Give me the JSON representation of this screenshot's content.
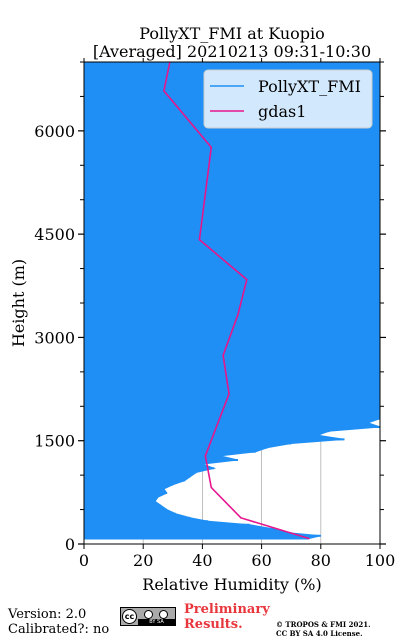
{
  "chart_data": {
    "type": "line",
    "title": "PollyXT_FMI at Kuopio",
    "subtitle": "[Averaged] 20210213 09:31-10:30",
    "xlabel": "Relative Humidity (%)",
    "ylabel": "Height (m)",
    "xlim": [
      0,
      100
    ],
    "ylim": [
      0,
      7000
    ],
    "xticks": [
      0,
      20,
      40,
      60,
      80,
      100
    ],
    "yticks": [
      0,
      1500,
      3000,
      4500,
      6000
    ],
    "grid": "vertical",
    "legend_position": "top-right",
    "series": [
      {
        "name": "PollyXT_FMI",
        "color": "#1f8ff5",
        "style": "horizontal-profile",
        "points": [
          [
            76,
            80
          ],
          [
            80,
            120
          ],
          [
            70,
            160
          ],
          [
            64,
            220
          ],
          [
            56,
            280
          ],
          [
            42,
            330
          ],
          [
            36,
            380
          ],
          [
            31,
            440
          ],
          [
            28,
            500
          ],
          [
            26,
            560
          ],
          [
            24,
            620
          ],
          [
            25,
            680
          ],
          [
            28,
            740
          ],
          [
            27,
            800
          ],
          [
            30,
            860
          ],
          [
            34,
            920
          ],
          [
            36,
            980
          ],
          [
            38,
            1040
          ],
          [
            44,
            1100
          ],
          [
            40,
            1160
          ],
          [
            52,
            1220
          ],
          [
            46,
            1280
          ],
          [
            58,
            1340
          ],
          [
            62,
            1400
          ],
          [
            70,
            1460
          ],
          [
            88,
            1520
          ],
          [
            79,
            1580
          ],
          [
            83,
            1640
          ],
          [
            100,
            1700
          ],
          [
            96,
            1760
          ],
          [
            100,
            1820
          ],
          [
            100,
            1880
          ],
          [
            100,
            1940
          ],
          [
            100,
            2000
          ],
          [
            100,
            2060
          ],
          [
            100,
            2120
          ],
          [
            100,
            2180
          ],
          [
            100,
            2240
          ],
          [
            100,
            2300
          ],
          [
            100,
            2360
          ],
          [
            100,
            2420
          ],
          [
            100,
            2480
          ],
          [
            100,
            2540
          ],
          [
            100,
            2600
          ],
          [
            100,
            7000
          ]
        ]
      },
      {
        "name": "gdas1",
        "color": "#e6168c",
        "style": "line",
        "points": [
          [
            76,
            80
          ],
          [
            53,
            380
          ],
          [
            43,
            820
          ],
          [
            41,
            1280
          ],
          [
            49,
            2180
          ],
          [
            47,
            2740
          ],
          [
            52,
            3330
          ],
          [
            55,
            3840
          ],
          [
            39,
            4420
          ],
          [
            43,
            5760
          ],
          [
            27,
            6580
          ],
          [
            29,
            7000
          ]
        ]
      }
    ]
  },
  "footer": {
    "version": "Version: 2.0",
    "calibrated": "Calibrated?: no",
    "license_badge_text": "BY SA",
    "preliminary_line1": "Preliminary",
    "preliminary_line2": "Results.",
    "copyright_line1": "© TROPOS & FMI 2021.",
    "copyright_line2": "CC BY SA 4.0 License."
  }
}
